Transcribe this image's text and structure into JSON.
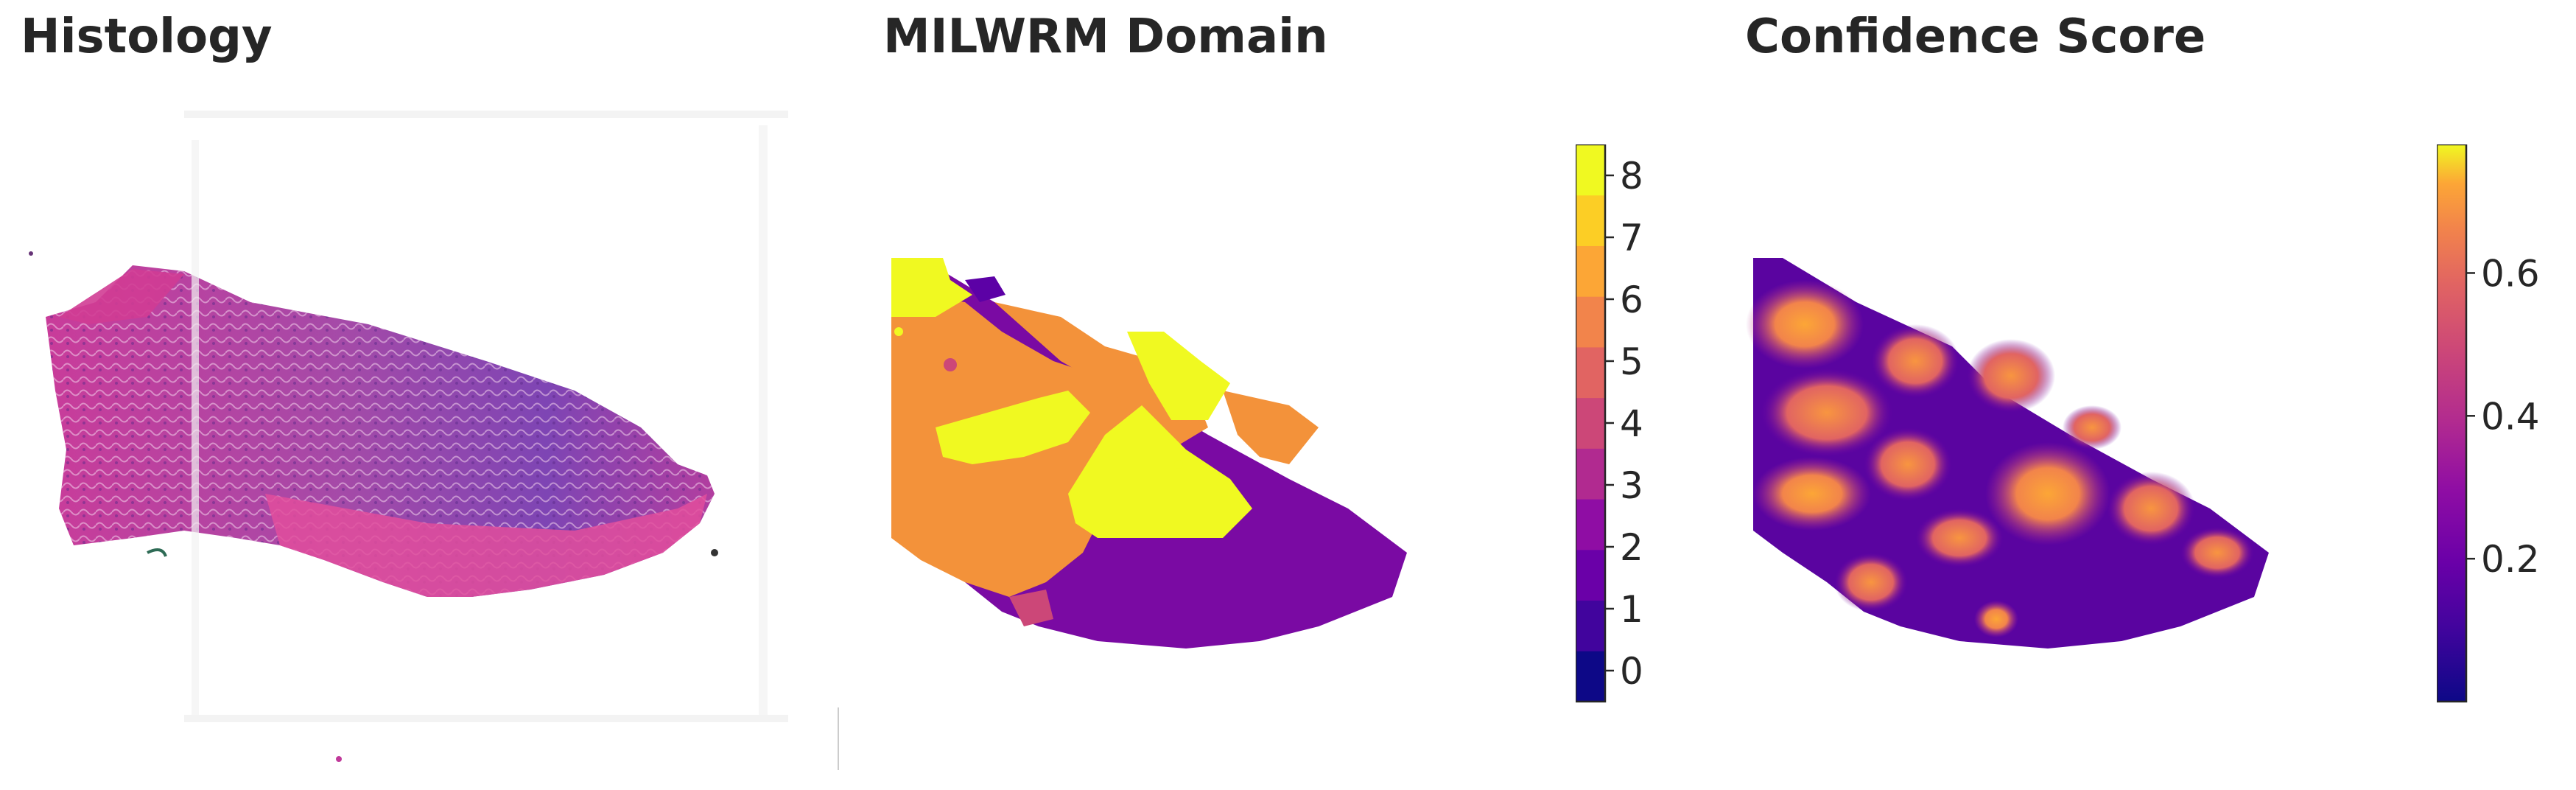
{
  "panels": {
    "histology": {
      "title": "Histology"
    },
    "domain": {
      "title": "MILWRM Domain"
    },
    "confidence": {
      "title": "Confidence Score"
    }
  },
  "domain_colorbar": {
    "ticks": [
      "0",
      "1",
      "2",
      "3",
      "4",
      "5",
      "6",
      "7",
      "8"
    ],
    "colors": [
      "#0d0887",
      "#41049d",
      "#6a00a8",
      "#8f0da4",
      "#b12a90",
      "#cc4778",
      "#e16462",
      "#f2844b",
      "#fca636",
      "#fcce25",
      "#f0f921"
    ],
    "min": -0.5,
    "max": 8.5
  },
  "confidence_colorbar": {
    "ticks": [
      "0.2",
      "0.4",
      "0.6"
    ],
    "tick_values": [
      0.2,
      0.4,
      0.6
    ],
    "min": 0.0,
    "max": 0.78,
    "colormap": "plasma"
  },
  "colors": {
    "domain_orange": "#f3923a",
    "domain_yellow": "#f0f921",
    "domain_purple": "#7a0aa3",
    "domain_dark_purple": "#5c01a6",
    "domain_pink": "#cc4778",
    "tissue_pink": "#d94aa0",
    "tissue_violet": "#8c47b5"
  }
}
